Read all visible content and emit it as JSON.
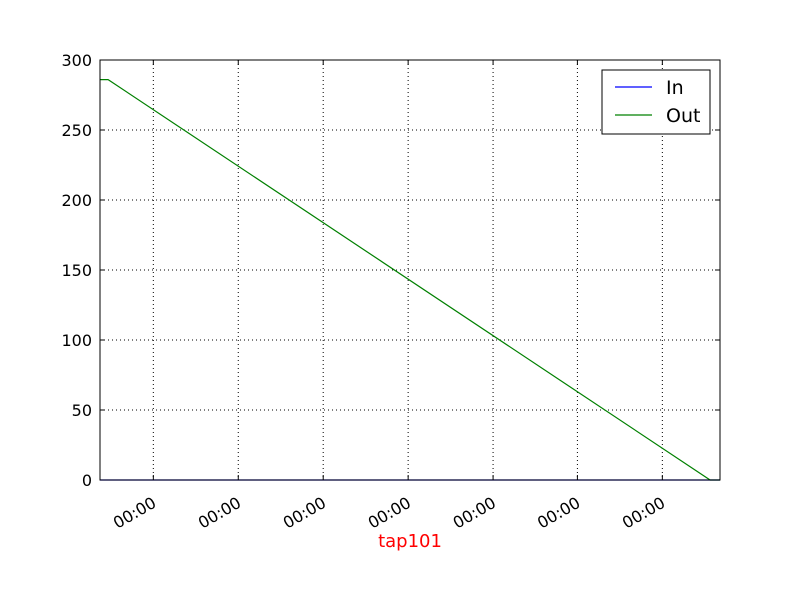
{
  "chart_data": {
    "type": "line",
    "x_tick_labels": [
      "00:00",
      "00:00",
      "00:00",
      "00:00",
      "00:00",
      "00:00",
      "00:00"
    ],
    "xlabel": "tap101",
    "xlabel_color": "#ff0000",
    "ylabel": "",
    "ylim": [
      0,
      300
    ],
    "yticks": [
      0,
      50,
      100,
      150,
      200,
      250,
      300
    ],
    "xlim": [
      0,
      100
    ],
    "x_tick_positions": [
      8.6,
      22.3,
      36.0,
      49.7,
      63.4,
      77.0,
      90.7
    ],
    "grid": true,
    "legend_position": "top-right",
    "series": [
      {
        "name": "In",
        "color": "#0000ff",
        "points": [
          [
            0,
            0
          ],
          [
            100,
            0
          ]
        ]
      },
      {
        "name": "Out",
        "color": "#008000",
        "points": [
          [
            0,
            286
          ],
          [
            1.3,
            286
          ],
          [
            98.4,
            0
          ],
          [
            100,
            0
          ]
        ]
      }
    ]
  }
}
